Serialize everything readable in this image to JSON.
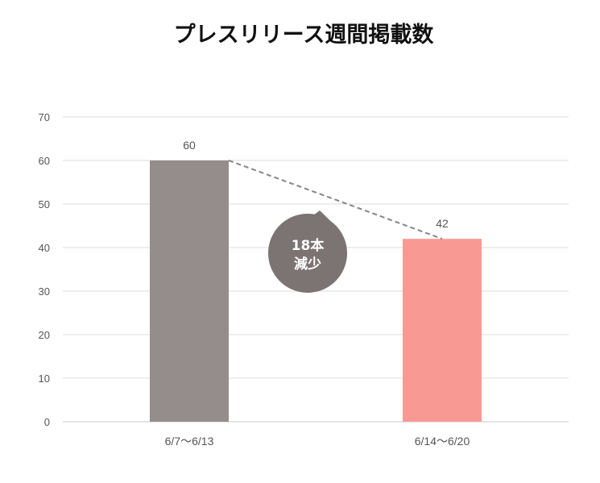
{
  "chart_data": {
    "type": "bar",
    "title": "プレスリリース週間掲載数",
    "categories": [
      "6/7〜6/13",
      "6/14〜6/20"
    ],
    "values": [
      60,
      42
    ],
    "colors": [
      "#958d8b",
      "#f99994"
    ],
    "ylim": [
      0,
      70
    ],
    "yticks": [
      0,
      10,
      20,
      30,
      40,
      50,
      60,
      70
    ],
    "grid": true,
    "data_labels": [
      "60",
      "42"
    ],
    "annotation": {
      "lines": [
        "18本",
        "減少"
      ],
      "color": "#7b7473",
      "connector": "dashed line from top of first bar to top of second bar"
    }
  }
}
